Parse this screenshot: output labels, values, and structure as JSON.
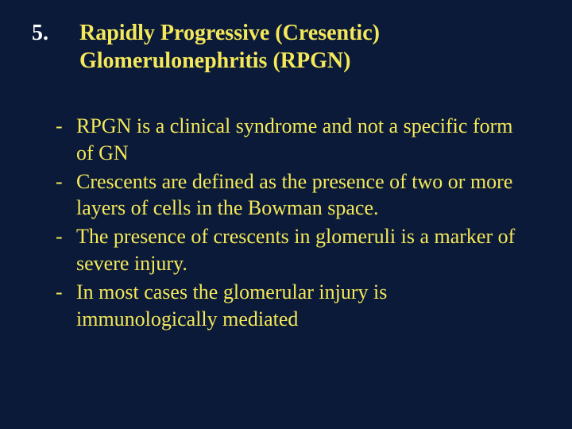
{
  "colors": {
    "background": "#0a1a38",
    "text": "#f5e85a",
    "number": "#ffffff"
  },
  "fonts": {
    "family": "Times New Roman",
    "title_size_pt": 28,
    "body_size_pt": 26,
    "title_weight": "bold"
  },
  "title": {
    "number": "5.",
    "text": "Rapidly Progressive (Cresentic) Glomerulonephritis (RPGN)"
  },
  "bullets": [
    "RPGN is a clinical syndrome and not a specific form of GN",
    "Crescents are defined as the presence of two or more layers of cells in the Bowman space.",
    "The presence of crescents in glomeruli is a marker of severe injury.",
    "In most cases the glomerular injury is immunologically mediated"
  ],
  "bullet_marker": "-"
}
